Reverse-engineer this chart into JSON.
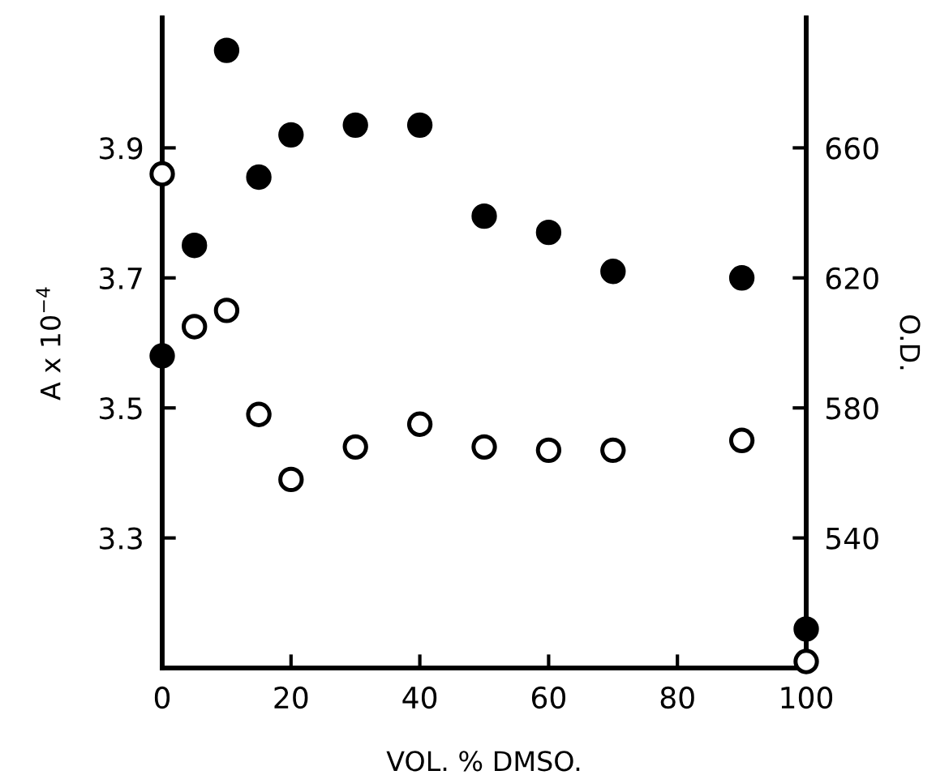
{
  "chart_data": {
    "type": "scatter",
    "xlabel": "VOL. % DMSO.",
    "ylabel": "A x 10$^{−4}$",
    "y2label": "O.D.",
    "x": [
      0,
      5,
      10,
      15,
      20,
      30,
      40,
      50,
      60,
      70,
      90,
      100
    ],
    "series": [
      {
        "color": "#000000",
        "values": [
          3.58,
          3.75,
          4.05,
          3.855,
          3.92,
          3.935,
          3.935,
          3.795,
          3.77,
          3.71,
          3.7,
          3.16
        ]
      },
      {
        "color": "#000000",
        "axis": "y2",
        "values": [
          652,
          605,
          610,
          578,
          558,
          568,
          575,
          568,
          567,
          567,
          570,
          502
        ]
      }
    ],
    "marker": "circle",
    "grid": false,
    "xlim": [
      0,
      100
    ],
    "xticks": [
      0,
      20,
      40,
      60,
      80,
      100
    ],
    "ylim": [
      3.1,
      4.1
    ],
    "yticks": [
      3.3,
      3.5,
      3.7,
      3.9
    ],
    "y2lim": [
      500,
      700
    ],
    "y2ticks": [
      540,
      580,
      620,
      660
    ]
  }
}
